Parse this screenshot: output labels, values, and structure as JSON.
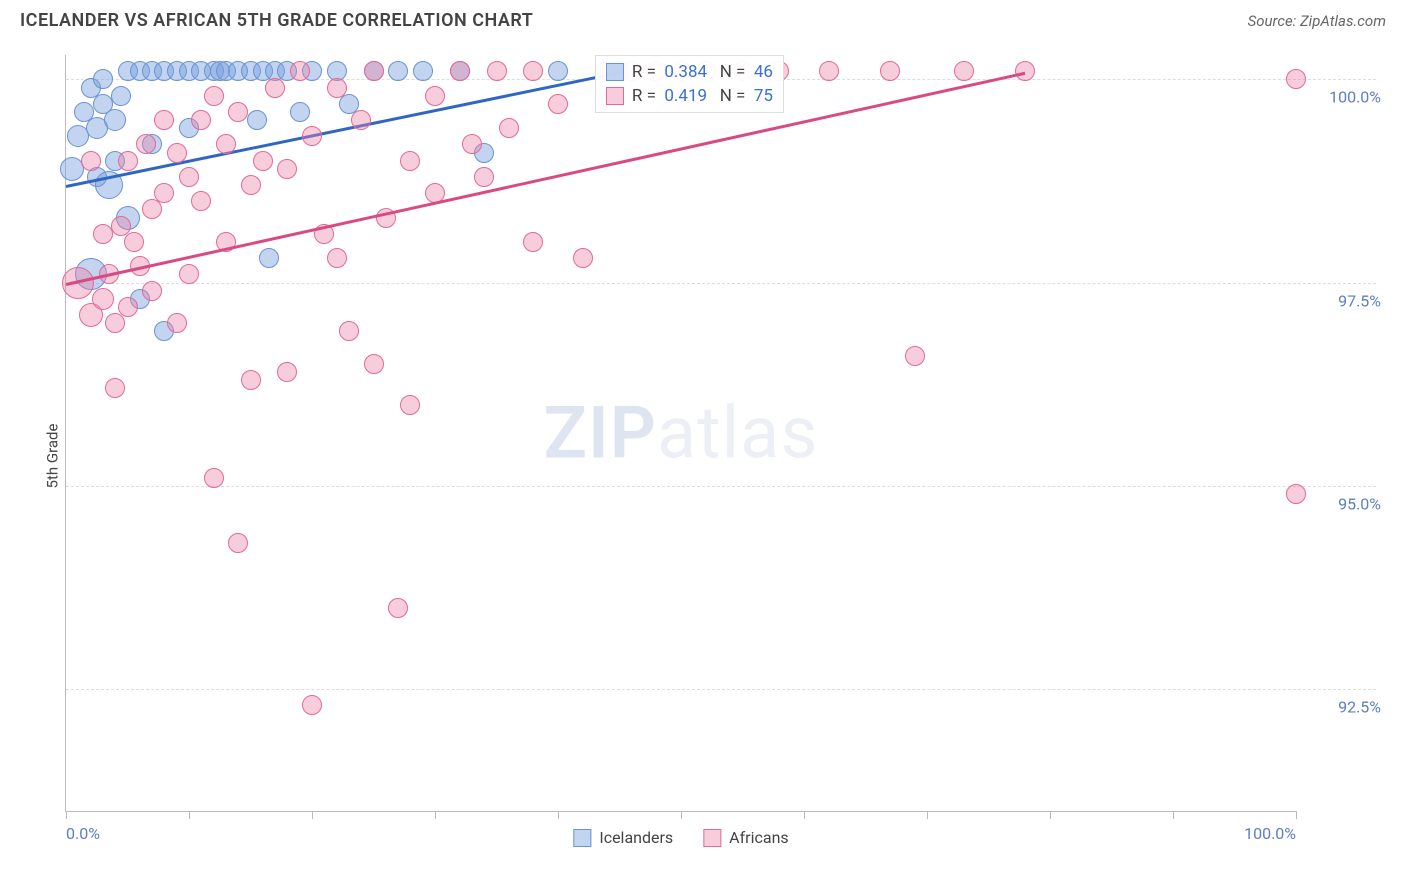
{
  "header": {
    "title": "ICELANDER VS AFRICAN 5TH GRADE CORRELATION CHART",
    "source": "Source: ZipAtlas.com"
  },
  "watermark": {
    "bold": "ZIP",
    "light": "atlas"
  },
  "chart": {
    "type": "scatter",
    "ylabel": "5th Grade",
    "background_color": "#ffffff",
    "grid_color": "#dddddd",
    "axis_color": "#bbbbbb",
    "tick_label_color": "#5b7fbf",
    "xlim": [
      0,
      100
    ],
    "ylim": [
      91.0,
      100.3
    ],
    "yticks": [
      {
        "v": 100.0,
        "label": "100.0%"
      },
      {
        "v": 97.5,
        "label": "97.5%"
      },
      {
        "v": 95.0,
        "label": "95.0%"
      },
      {
        "v": 92.5,
        "label": "92.5%"
      }
    ],
    "xticks_major": [
      0,
      10,
      20,
      30,
      40,
      50,
      60,
      70,
      80,
      90,
      100
    ],
    "xticks_labeled": [
      {
        "v": 0,
        "label": "0.0%"
      },
      {
        "v": 100,
        "label": "100.0%"
      }
    ],
    "series": [
      {
        "id": "icelanders",
        "label": "Icelanders",
        "fill": "rgba(120,160,220,0.45)",
        "stroke": "#6a93d6",
        "line_color": "#2f66c4",
        "R": "0.384",
        "N": "46",
        "marker_r_min": 9,
        "marker_r_max": 16,
        "trend": {
          "x1": 0,
          "y1": 98.7,
          "x2": 45,
          "y2": 100.1
        },
        "points": [
          {
            "x": 0.5,
            "y": 98.9,
            "r": 12
          },
          {
            "x": 1,
            "y": 99.3,
            "r": 11
          },
          {
            "x": 1.5,
            "y": 99.6,
            "r": 10
          },
          {
            "x": 2,
            "y": 99.9,
            "r": 10
          },
          {
            "x": 2,
            "y": 97.6,
            "r": 16
          },
          {
            "x": 2.5,
            "y": 99.4,
            "r": 11
          },
          {
            "x": 2.5,
            "y": 98.8,
            "r": 10
          },
          {
            "x": 3,
            "y": 99.7,
            "r": 10
          },
          {
            "x": 3,
            "y": 100.0,
            "r": 10
          },
          {
            "x": 3.5,
            "y": 98.7,
            "r": 14
          },
          {
            "x": 4,
            "y": 99.5,
            "r": 11
          },
          {
            "x": 4,
            "y": 99.0,
            "r": 10
          },
          {
            "x": 4.5,
            "y": 99.8,
            "r": 10
          },
          {
            "x": 5,
            "y": 100.1,
            "r": 10
          },
          {
            "x": 5,
            "y": 98.3,
            "r": 12
          },
          {
            "x": 6,
            "y": 100.1,
            "r": 10
          },
          {
            "x": 6,
            "y": 97.3,
            "r": 10
          },
          {
            "x": 7,
            "y": 100.1,
            "r": 10
          },
          {
            "x": 7,
            "y": 99.2,
            "r": 10
          },
          {
            "x": 8,
            "y": 100.1,
            "r": 10
          },
          {
            "x": 8,
            "y": 96.9,
            "r": 10
          },
          {
            "x": 9,
            "y": 100.1,
            "r": 10
          },
          {
            "x": 10,
            "y": 100.1,
            "r": 10
          },
          {
            "x": 10,
            "y": 99.4,
            "r": 10
          },
          {
            "x": 11,
            "y": 100.1,
            "r": 10
          },
          {
            "x": 12,
            "y": 100.1,
            "r": 10
          },
          {
            "x": 12.5,
            "y": 100.1,
            "r": 10
          },
          {
            "x": 13,
            "y": 100.1,
            "r": 10
          },
          {
            "x": 14,
            "y": 100.1,
            "r": 10
          },
          {
            "x": 15,
            "y": 100.1,
            "r": 10
          },
          {
            "x": 15.5,
            "y": 99.5,
            "r": 10
          },
          {
            "x": 16,
            "y": 100.1,
            "r": 10
          },
          {
            "x": 16.5,
            "y": 97.8,
            "r": 10
          },
          {
            "x": 17,
            "y": 100.1,
            "r": 10
          },
          {
            "x": 18,
            "y": 100.1,
            "r": 10
          },
          {
            "x": 19,
            "y": 99.6,
            "r": 10
          },
          {
            "x": 20,
            "y": 100.1,
            "r": 10
          },
          {
            "x": 22,
            "y": 100.1,
            "r": 10
          },
          {
            "x": 23,
            "y": 99.7,
            "r": 10
          },
          {
            "x": 25,
            "y": 100.1,
            "r": 10
          },
          {
            "x": 27,
            "y": 100.1,
            "r": 10
          },
          {
            "x": 29,
            "y": 100.1,
            "r": 10
          },
          {
            "x": 32,
            "y": 100.1,
            "r": 10
          },
          {
            "x": 34,
            "y": 99.1,
            "r": 10
          },
          {
            "x": 40,
            "y": 100.1,
            "r": 10
          },
          {
            "x": 45,
            "y": 100.1,
            "r": 10
          }
        ]
      },
      {
        "id": "africans",
        "label": "Africans",
        "fill": "rgba(235,130,165,0.40)",
        "stroke": "#e26a99",
        "line_color": "#d94a84",
        "R": "0.419",
        "N": "75",
        "marker_r_min": 9,
        "marker_r_max": 16,
        "trend": {
          "x1": 0,
          "y1": 97.5,
          "x2": 78,
          "y2": 100.1
        },
        "points": [
          {
            "x": 1,
            "y": 97.5,
            "r": 16
          },
          {
            "x": 2,
            "y": 97.1,
            "r": 12
          },
          {
            "x": 2,
            "y": 99.0,
            "r": 10
          },
          {
            "x": 3,
            "y": 97.3,
            "r": 11
          },
          {
            "x": 3,
            "y": 98.1,
            "r": 10
          },
          {
            "x": 3.5,
            "y": 97.6,
            "r": 10
          },
          {
            "x": 4,
            "y": 96.2,
            "r": 10
          },
          {
            "x": 4,
            "y": 97.0,
            "r": 10
          },
          {
            "x": 4.5,
            "y": 98.2,
            "r": 10
          },
          {
            "x": 5,
            "y": 97.2,
            "r": 10
          },
          {
            "x": 5,
            "y": 99.0,
            "r": 10
          },
          {
            "x": 5.5,
            "y": 98.0,
            "r": 10
          },
          {
            "x": 6,
            "y": 97.7,
            "r": 10
          },
          {
            "x": 6.5,
            "y": 99.2,
            "r": 10
          },
          {
            "x": 7,
            "y": 98.4,
            "r": 10
          },
          {
            "x": 7,
            "y": 97.4,
            "r": 10
          },
          {
            "x": 8,
            "y": 99.5,
            "r": 10
          },
          {
            "x": 8,
            "y": 98.6,
            "r": 10
          },
          {
            "x": 9,
            "y": 97.0,
            "r": 10
          },
          {
            "x": 9,
            "y": 99.1,
            "r": 10
          },
          {
            "x": 10,
            "y": 98.8,
            "r": 10
          },
          {
            "x": 10,
            "y": 97.6,
            "r": 10
          },
          {
            "x": 11,
            "y": 99.5,
            "r": 10
          },
          {
            "x": 11,
            "y": 98.5,
            "r": 10
          },
          {
            "x": 12,
            "y": 99.8,
            "r": 10
          },
          {
            "x": 12,
            "y": 95.1,
            "r": 10
          },
          {
            "x": 13,
            "y": 99.2,
            "r": 10
          },
          {
            "x": 13,
            "y": 98.0,
            "r": 10
          },
          {
            "x": 14,
            "y": 94.3,
            "r": 10
          },
          {
            "x": 14,
            "y": 99.6,
            "r": 10
          },
          {
            "x": 15,
            "y": 98.7,
            "r": 10
          },
          {
            "x": 15,
            "y": 96.3,
            "r": 10
          },
          {
            "x": 16,
            "y": 99.0,
            "r": 10
          },
          {
            "x": 17,
            "y": 99.9,
            "r": 10
          },
          {
            "x": 18,
            "y": 96.4,
            "r": 10
          },
          {
            "x": 18,
            "y": 98.9,
            "r": 10
          },
          {
            "x": 19,
            "y": 100.1,
            "r": 10
          },
          {
            "x": 20,
            "y": 92.3,
            "r": 10
          },
          {
            "x": 20,
            "y": 99.3,
            "r": 10
          },
          {
            "x": 21,
            "y": 98.1,
            "r": 10
          },
          {
            "x": 22,
            "y": 97.8,
            "r": 10
          },
          {
            "x": 22,
            "y": 99.9,
            "r": 10
          },
          {
            "x": 23,
            "y": 96.9,
            "r": 10
          },
          {
            "x": 24,
            "y": 99.5,
            "r": 10
          },
          {
            "x": 25,
            "y": 100.1,
            "r": 10
          },
          {
            "x": 25,
            "y": 96.5,
            "r": 10
          },
          {
            "x": 26,
            "y": 98.3,
            "r": 10
          },
          {
            "x": 27,
            "y": 93.5,
            "r": 10
          },
          {
            "x": 28,
            "y": 99.0,
            "r": 10
          },
          {
            "x": 28,
            "y": 96.0,
            "r": 10
          },
          {
            "x": 30,
            "y": 99.8,
            "r": 10
          },
          {
            "x": 30,
            "y": 98.6,
            "r": 10
          },
          {
            "x": 32,
            "y": 100.1,
            "r": 10
          },
          {
            "x": 33,
            "y": 99.2,
            "r": 10
          },
          {
            "x": 34,
            "y": 98.8,
            "r": 10
          },
          {
            "x": 35,
            "y": 100.1,
            "r": 10
          },
          {
            "x": 36,
            "y": 99.4,
            "r": 10
          },
          {
            "x": 38,
            "y": 100.1,
            "r": 10
          },
          {
            "x": 38,
            "y": 98.0,
            "r": 10
          },
          {
            "x": 40,
            "y": 99.7,
            "r": 10
          },
          {
            "x": 42,
            "y": 97.8,
            "r": 10
          },
          {
            "x": 44,
            "y": 100.1,
            "r": 10
          },
          {
            "x": 46,
            "y": 100.1,
            "r": 10
          },
          {
            "x": 48,
            "y": 100.1,
            "r": 10
          },
          {
            "x": 50,
            "y": 100.1,
            "r": 10
          },
          {
            "x": 52,
            "y": 100.1,
            "r": 10
          },
          {
            "x": 55,
            "y": 100.1,
            "r": 10
          },
          {
            "x": 58,
            "y": 100.1,
            "r": 10
          },
          {
            "x": 62,
            "y": 100.1,
            "r": 10
          },
          {
            "x": 67,
            "y": 100.1,
            "r": 10
          },
          {
            "x": 69,
            "y": 96.6,
            "r": 10
          },
          {
            "x": 73,
            "y": 100.1,
            "r": 10
          },
          {
            "x": 78,
            "y": 100.1,
            "r": 10
          },
          {
            "x": 100,
            "y": 100.0,
            "r": 10
          },
          {
            "x": 100,
            "y": 94.9,
            "r": 10
          }
        ]
      }
    ],
    "legend_stats_pos": {
      "left_pct": 43,
      "top_pct": 0
    },
    "bottom_legend": [
      {
        "series": 0
      },
      {
        "series": 1
      }
    ]
  }
}
